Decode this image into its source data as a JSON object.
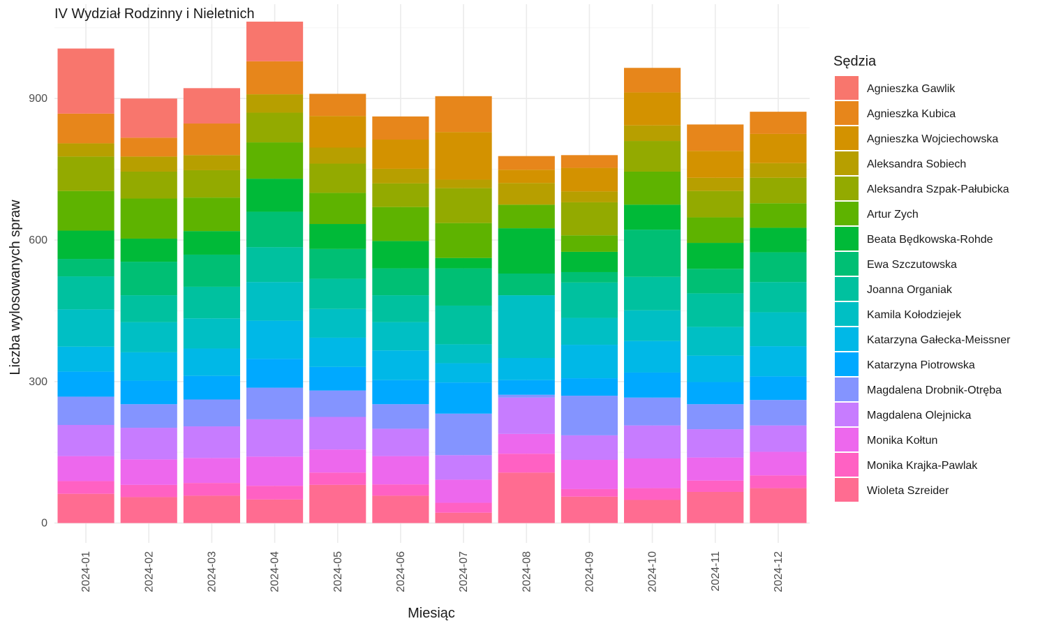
{
  "chart_data": {
    "type": "bar",
    "stacked": true,
    "title": "IV Wydział Rodzinny i Nieletnich",
    "xlabel": "Miesiąc",
    "ylabel": "Liczba wylosowanych spraw",
    "ylim": [
      -42,
      1100
    ],
    "yticks": [
      0,
      300,
      600,
      900
    ],
    "grid": true,
    "legend_title": "Sędzia",
    "legend_position": "right",
    "categories": [
      "2024-01",
      "2024-02",
      "2024-03",
      "2024-04",
      "2024-05",
      "2024-06",
      "2024-07",
      "2024-08",
      "2024-09",
      "2024-10",
      "2024-11",
      "2024-12"
    ],
    "series": [
      {
        "name": "Agnieszka Gawlik",
        "color": "#F8766D",
        "values": [
          138,
          83,
          75,
          84,
          0,
          0,
          0,
          0,
          0,
          0,
          0,
          0
        ]
      },
      {
        "name": "Agnieszka Kubica",
        "color": "#E7861B",
        "values": [
          63,
          40,
          67,
          70,
          47,
          49,
          76,
          29,
          27,
          52,
          56,
          47
        ]
      },
      {
        "name": "Agnieszka Wojciechowska",
        "color": "#D39200",
        "values": [
          0,
          0,
          0,
          0,
          67,
          62,
          101,
          28,
          50,
          70,
          57,
          62
        ]
      },
      {
        "name": "Aleksandra Sobiech",
        "color": "#B79F00",
        "values": [
          28,
          32,
          32,
          39,
          34,
          31,
          18,
          46,
          23,
          33,
          28,
          31
        ]
      },
      {
        "name": "Aleksandra Szpak-Pałubicka",
        "color": "#93AA00",
        "values": [
          73,
          57,
          58,
          63,
          62,
          50,
          74,
          0,
          70,
          65,
          56,
          54
        ]
      },
      {
        "name": "Artur Zych",
        "color": "#5EB300",
        "values": [
          84,
          85,
          71,
          77,
          66,
          72,
          74,
          50,
          35,
          70,
          54,
          52
        ]
      },
      {
        "name": "Beata Będkowska-Rohde",
        "color": "#00BA38",
        "values": [
          60,
          49,
          50,
          70,
          53,
          58,
          22,
          96,
          43,
          53,
          55,
          52
        ]
      },
      {
        "name": "Ewa Szczutowska",
        "color": "#00BF74",
        "values": [
          37,
          71,
          68,
          75,
          63,
          57,
          79,
          46,
          22,
          100,
          52,
          63
        ]
      },
      {
        "name": "Joanna Organiak",
        "color": "#00C19F",
        "values": [
          70,
          57,
          67,
          74,
          64,
          57,
          82,
          0,
          75,
          71,
          71,
          64
        ]
      },
      {
        "name": "Kamila Kołodziejek",
        "color": "#00BFC4",
        "values": [
          79,
          64,
          64,
          82,
          61,
          60,
          40,
          133,
          57,
          65,
          61,
          72
        ]
      },
      {
        "name": "Katarzyna Gałecka-Meissner",
        "color": "#00B8E7",
        "values": [
          53,
          60,
          58,
          81,
          62,
          63,
          41,
          47,
          71,
          67,
          56,
          64
        ]
      },
      {
        "name": "Katarzyna Piotrowska",
        "color": "#00A9FF",
        "values": [
          53,
          50,
          50,
          61,
          50,
          51,
          66,
          31,
          37,
          53,
          47,
          50
        ]
      },
      {
        "name": "Magdalena Drobnik-Otręba",
        "color": "#8494FF",
        "values": [
          60,
          50,
          57,
          67,
          56,
          52,
          88,
          6,
          84,
          59,
          53,
          54
        ]
      },
      {
        "name": "Magdalena Olejnicka",
        "color": "#C77CFF",
        "values": [
          66,
          67,
          67,
          79,
          69,
          58,
          52,
          77,
          52,
          70,
          60,
          56
        ]
      },
      {
        "name": "Monika Kołtun",
        "color": "#ED68ED",
        "values": [
          53,
          54,
          53,
          62,
          49,
          60,
          49,
          42,
          62,
          63,
          49,
          50
        ]
      },
      {
        "name": "Monika Krajka-Pawlak",
        "color": "#FF61C3",
        "values": [
          27,
          26,
          27,
          29,
          26,
          24,
          21,
          40,
          16,
          25,
          24,
          27
        ]
      },
      {
        "name": "Wioleta Szreider",
        "color": "#FF6C91",
        "values": [
          62,
          55,
          58,
          50,
          81,
          58,
          22,
          107,
          56,
          49,
          66,
          74
        ]
      }
    ]
  }
}
